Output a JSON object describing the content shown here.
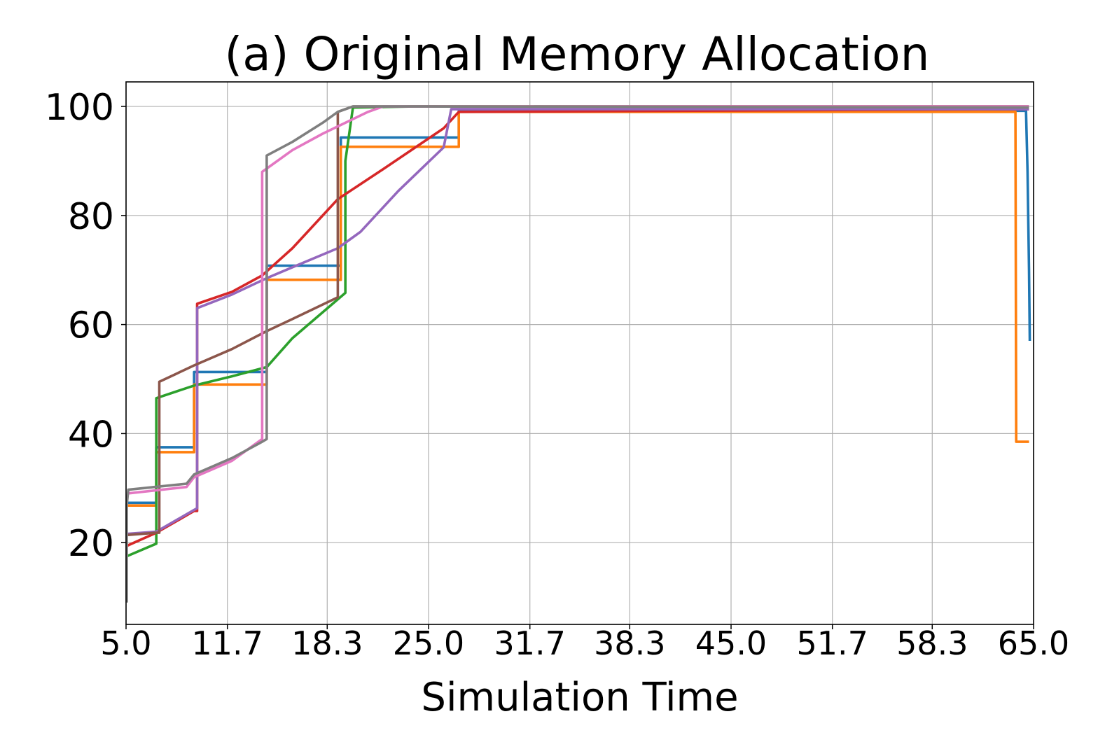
{
  "chart_data": {
    "type": "line",
    "title": "(a) Original Memory Allocation",
    "xlabel": "Simulation Time",
    "ylabel": "",
    "xlim": [
      5.0,
      65.0
    ],
    "ylim": [
      5,
      104.5
    ],
    "xticks": [
      5.0,
      11.7,
      18.3,
      25.0,
      31.7,
      38.3,
      45.0,
      51.7,
      58.3,
      65.0
    ],
    "xtick_labels": [
      "5.0",
      "11.7",
      "18.3",
      "25.0",
      "31.7",
      "38.3",
      "45.0",
      "51.7",
      "58.3",
      "65.0"
    ],
    "yticks": [
      20,
      40,
      60,
      80,
      100
    ],
    "ytick_labels": [
      "20",
      "40",
      "60",
      "80",
      "100"
    ],
    "grid": true,
    "series": [
      {
        "color": "#1f77b4",
        "x": [
          5.05,
          7.0,
          7.0,
          9.5,
          9.5,
          14.3,
          14.3,
          19.2,
          19.2,
          27.0,
          27.0,
          64.5,
          64.6,
          64.7,
          64.75
        ],
        "y": [
          27.3,
          27.3,
          37.5,
          37.5,
          51.3,
          51.3,
          70.8,
          70.8,
          94.3,
          94.3,
          99.2,
          99.2,
          88.0,
          70.0,
          57.0
        ]
      },
      {
        "color": "#ff7f0e",
        "x": [
          5.05,
          7.0,
          7.0,
          9.5,
          9.5,
          14.3,
          14.3,
          19.2,
          19.2,
          27.0,
          27.0,
          63.8,
          63.85,
          64.7
        ],
        "y": [
          26.8,
          26.8,
          36.6,
          36.6,
          49.0,
          49.0,
          68.2,
          68.2,
          92.6,
          92.6,
          99.0,
          99.0,
          38.5,
          38.5
        ]
      },
      {
        "color": "#2ca02c",
        "x": [
          5.05,
          7.0,
          7.0,
          9.5,
          12.0,
          14.3,
          16.0,
          19.5,
          19.5,
          20.0,
          24.0,
          64.7
        ],
        "y": [
          17.5,
          19.8,
          46.5,
          48.8,
          50.5,
          52.2,
          57.5,
          65.8,
          90.0,
          99.8,
          100.0,
          100.0
        ]
      },
      {
        "color": "#d62728",
        "x": [
          5.05,
          7.0,
          9.5,
          9.7,
          9.7,
          12.0,
          14.0,
          16.0,
          19.0,
          22.0,
          26.0,
          27.0,
          64.7
        ],
        "y": [
          19.4,
          21.8,
          25.8,
          25.8,
          63.8,
          66.0,
          69.0,
          74.0,
          83.0,
          88.5,
          96.0,
          99.0,
          99.5
        ]
      },
      {
        "color": "#9467bd",
        "x": [
          5.05,
          7.0,
          9.5,
          9.7,
          9.7,
          12.0,
          14.3,
          16.0,
          19.0,
          20.5,
          23.0,
          26.0,
          26.5,
          64.7
        ],
        "y": [
          21.6,
          22.0,
          26.0,
          26.3,
          63.0,
          65.5,
          68.5,
          70.5,
          74.0,
          77.0,
          84.5,
          92.5,
          99.5,
          99.5
        ]
      },
      {
        "color": "#8c564b",
        "x": [
          5.05,
          7.0,
          7.2,
          7.2,
          9.5,
          12.0,
          14.3,
          16.0,
          19.0,
          19.0,
          20.0,
          25.0,
          64.7
        ],
        "y": [
          21.4,
          21.8,
          21.8,
          49.5,
          52.5,
          55.5,
          58.8,
          61.0,
          65.0,
          99.0,
          100.0,
          100.0,
          100.0
        ]
      },
      {
        "color": "#e377c2",
        "x": [
          5.05,
          9.0,
          9.5,
          12.0,
          13.5,
          14.0,
          14.0,
          16.0,
          18.0,
          21.0,
          22.0,
          26.5,
          64.7
        ],
        "y": [
          29.0,
          30.2,
          32.0,
          35.0,
          38.0,
          39.0,
          88.0,
          92.0,
          95.0,
          99.0,
          100.0,
          100.0,
          100.0
        ]
      },
      {
        "color": "#7f7f7f",
        "x": [
          5.05,
          5.05,
          5.15,
          9.0,
          9.5,
          12.0,
          14.0,
          14.3,
          14.3,
          16.0,
          18.0,
          19.0,
          20.0,
          25.0,
          64.7
        ],
        "y": [
          9.0,
          27.0,
          29.7,
          30.8,
          32.5,
          35.5,
          38.5,
          39.0,
          91.0,
          93.5,
          97.0,
          99.0,
          100.0,
          100.0,
          99.8
        ]
      }
    ]
  }
}
